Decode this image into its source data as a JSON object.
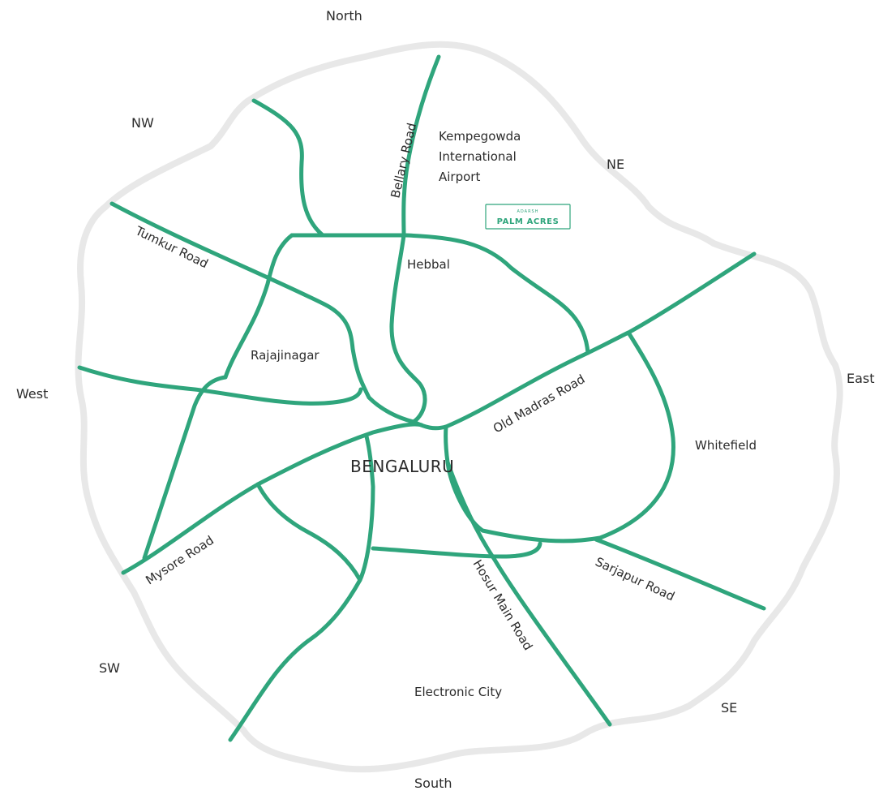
{
  "directions": {
    "north": "North",
    "south": "South",
    "east": "East",
    "west": "West",
    "nw": "NW",
    "ne": "NE",
    "sw": "SW",
    "se": "SE"
  },
  "city": "BENGALURU",
  "places": {
    "airport_line1": "Kempegowda",
    "airport_line2": "International",
    "airport_line3": "Airport",
    "hebbal": "Hebbal",
    "rajajinagar": "Rajajinagar",
    "whitefield": "Whitefield",
    "electronic_city": "Electronic City"
  },
  "roads": {
    "bellary": "Bellary Road",
    "tumkur": "Tumkur Road",
    "old_madras": "Old Madras Road",
    "mysore": "Mysore Road",
    "hosur": "Hosur Main Road",
    "sarjapur": "Sarjapur Road"
  },
  "logo": {
    "brand": "ADARSH",
    "project": "PALM ACRES"
  },
  "colors": {
    "road": "#2fa57c",
    "boundary": "#e8e8e8"
  }
}
